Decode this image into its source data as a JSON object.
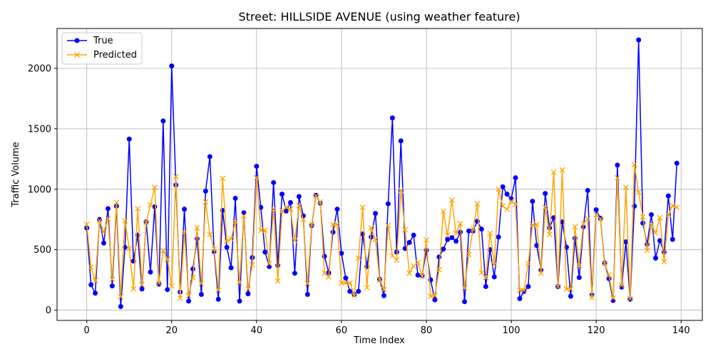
{
  "chart_data": {
    "type": "line",
    "title": "Street: HILLSIDE AVENUE (using weather feature)",
    "xlabel": "Time Index",
    "ylabel": "Traffic Volume",
    "xlim": [
      -7,
      145
    ],
    "ylim": [
      -85,
      2330
    ],
    "xticks": [
      0,
      20,
      40,
      60,
      80,
      100,
      120,
      140
    ],
    "yticks": [
      0,
      500,
      1000,
      1500,
      2000
    ],
    "grid": true,
    "legend_position": "top-left",
    "series": [
      {
        "name": "True",
        "color": "#0000ff",
        "marker": "circle",
        "values": [
          680,
          210,
          140,
          750,
          555,
          840,
          200,
          860,
          30,
          520,
          1415,
          405,
          620,
          175,
          730,
          315,
          855,
          215,
          1565,
          170,
          2020,
          1035,
          150,
          835,
          75,
          340,
          590,
          130,
          985,
          1270,
          485,
          90,
          825,
          520,
          350,
          925,
          75,
          805,
          135,
          435,
          1190,
          850,
          480,
          360,
          1055,
          370,
          960,
          820,
          890,
          305,
          940,
          780,
          130,
          700,
          950,
          885,
          445,
          310,
          645,
          835,
          470,
          265,
          155,
          130,
          155,
          630,
          360,
          605,
          800,
          255,
          120,
          880,
          1590,
          480,
          1400,
          510,
          560,
          620,
          290,
          285,
          495,
          250,
          85,
          440,
          505,
          585,
          600,
          570,
          645,
          70,
          655,
          655,
          735,
          670,
          195,
          500,
          275,
          605,
          1020,
          960,
          920,
          1095,
          95,
          155,
          195,
          900,
          535,
          330,
          965,
          680,
          765,
          195,
          730,
          520,
          115,
          595,
          270,
          690,
          990,
          125,
          830,
          760,
          390,
          260,
          80,
          1200,
          190,
          565,
          90,
          860,
          2235,
          720,
          545,
          790,
          430,
          575,
          480,
          945,
          585,
          1215
        ]
      },
      {
        "name": "Predicted",
        "color": "#ffa500",
        "marker": "x",
        "values": [
          710,
          355,
          245,
          740,
          645,
          755,
          255,
          890,
          110,
          740,
          510,
          175,
          840,
          210,
          725,
          870,
          1015,
          225,
          495,
          420,
          200,
          1105,
          100,
          645,
          120,
          270,
          680,
          220,
          895,
          625,
          505,
          165,
          1090,
          570,
          590,
          730,
          230,
          780,
          175,
          375,
          1095,
          660,
          660,
          385,
          835,
          240,
          820,
          850,
          835,
          575,
          865,
          750,
          220,
          710,
          945,
          895,
          305,
          275,
          710,
          710,
          225,
          225,
          225,
          120,
          430,
          850,
          185,
          680,
          585,
          250,
          170,
          700,
          450,
          415,
          990,
          665,
          305,
          365,
          395,
          280,
          580,
          115,
          120,
          335,
          815,
          620,
          910,
          635,
          715,
          185,
          460,
          670,
          880,
          310,
          270,
          635,
          375,
          1000,
          860,
          835,
          900,
          875,
          165,
          165,
          385,
          705,
          710,
          305,
          850,
          625,
          1140,
          195,
          1160,
          175,
          175,
          690,
          370,
          715,
          755,
          105,
          790,
          755,
          385,
          290,
          100,
          1095,
          205,
          1015,
          95,
          1205,
          975,
          770,
          495,
          705,
          640,
          765,
          400,
          790,
          865,
          850
        ]
      }
    ]
  }
}
